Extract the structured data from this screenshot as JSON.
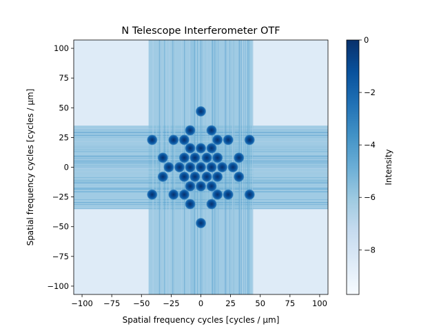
{
  "chart_data": {
    "type": "heatmap",
    "title": "N Telescope Interferometer OTF",
    "xlabel": "Spatial frequency cycles [cycles / μm]",
    "ylabel": "Spatial frequency cycles [cycles / μm]",
    "xlim": [
      -107,
      107
    ],
    "ylim": [
      -107,
      107
    ],
    "xticks": [
      -100,
      -75,
      -50,
      -25,
      0,
      25,
      50,
      75,
      100
    ],
    "yticks": [
      -100,
      -75,
      -50,
      -25,
      0,
      25,
      50,
      75,
      100
    ],
    "grid": false,
    "colormap": "Blues",
    "colorbar": {
      "label": "Intensity",
      "range": [
        -9.7,
        0
      ],
      "ticks": [
        0,
        -2,
        -4,
        -6,
        -8
      ]
    },
    "background_level": -8.5,
    "bands": [
      {
        "orientation": "horizontal",
        "from": -35,
        "to": 35,
        "level": -5.5
      },
      {
        "orientation": "vertical",
        "from": -44,
        "to": 44,
        "level": -5.5
      }
    ],
    "peaks": [
      {
        "x": 0,
        "y": 0,
        "level": 0
      },
      {
        "x": 0,
        "y": 47,
        "level": -0.8
      },
      {
        "x": 0,
        "y": -47,
        "level": -0.8
      },
      {
        "x": -9,
        "y": 31,
        "level": -0.9
      },
      {
        "x": 9,
        "y": 31,
        "level": -0.9
      },
      {
        "x": -9,
        "y": -31,
        "level": -0.9
      },
      {
        "x": 9,
        "y": -31,
        "level": -0.9
      },
      {
        "x": -41,
        "y": 23,
        "level": -0.8
      },
      {
        "x": 41,
        "y": 23,
        "level": -0.8
      },
      {
        "x": -41,
        "y": -23,
        "level": -0.8
      },
      {
        "x": 41,
        "y": -23,
        "level": -0.8
      },
      {
        "x": -23,
        "y": 23,
        "level": -0.9
      },
      {
        "x": -14,
        "y": 23,
        "level": -0.9
      },
      {
        "x": 14,
        "y": 23,
        "level": -0.9
      },
      {
        "x": 23,
        "y": 23,
        "level": -0.9
      },
      {
        "x": -23,
        "y": -23,
        "level": -0.9
      },
      {
        "x": -14,
        "y": -23,
        "level": -0.9
      },
      {
        "x": 14,
        "y": -23,
        "level": -0.9
      },
      {
        "x": 23,
        "y": -23,
        "level": -0.9
      },
      {
        "x": -9,
        "y": 16,
        "level": -0.8
      },
      {
        "x": 0,
        "y": 16,
        "level": -0.8
      },
      {
        "x": 9,
        "y": 16,
        "level": -0.8
      },
      {
        "x": -9,
        "y": -16,
        "level": -0.8
      },
      {
        "x": 0,
        "y": -16,
        "level": -0.8
      },
      {
        "x": 9,
        "y": -16,
        "level": -0.8
      },
      {
        "x": -32,
        "y": 8,
        "level": -0.8
      },
      {
        "x": -14,
        "y": 8,
        "level": -0.8
      },
      {
        "x": -5,
        "y": 8,
        "level": -0.8
      },
      {
        "x": 5,
        "y": 8,
        "level": -0.8
      },
      {
        "x": 14,
        "y": 8,
        "level": -0.8
      },
      {
        "x": 32,
        "y": 8,
        "level": -0.8
      },
      {
        "x": -32,
        "y": -8,
        "level": -0.8
      },
      {
        "x": -14,
        "y": -8,
        "level": -0.8
      },
      {
        "x": -5,
        "y": -8,
        "level": -0.8
      },
      {
        "x": 5,
        "y": -8,
        "level": -0.8
      },
      {
        "x": 14,
        "y": -8,
        "level": -0.8
      },
      {
        "x": 32,
        "y": -8,
        "level": -0.8
      },
      {
        "x": -27,
        "y": 0,
        "level": -0.8
      },
      {
        "x": -18,
        "y": 0,
        "level": -0.8
      },
      {
        "x": -9,
        "y": 0,
        "level": -0.8
      },
      {
        "x": 9,
        "y": 0,
        "level": -0.8
      },
      {
        "x": 18,
        "y": 0,
        "level": -0.8
      },
      {
        "x": 27,
        "y": 0,
        "level": -0.8
      }
    ]
  }
}
